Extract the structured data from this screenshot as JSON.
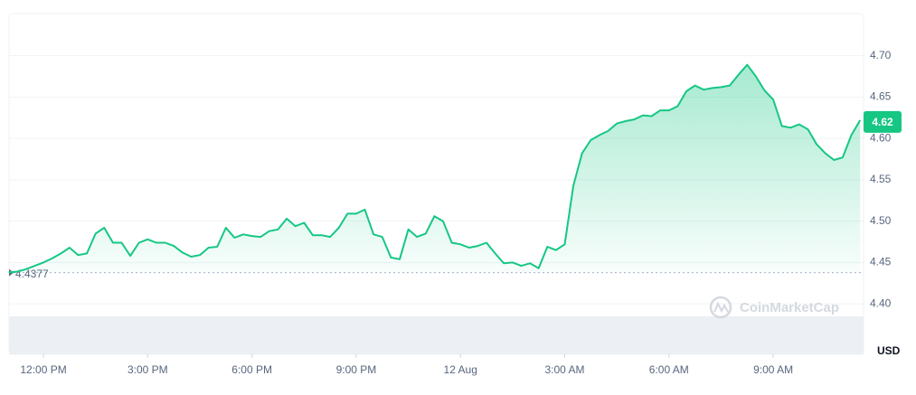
{
  "chart_data": {
    "type": "area",
    "unit": "USD",
    "watermark": "CoinMarketCap",
    "color": "#16c784",
    "x": [
      -1,
      -0.75,
      -0.5,
      -0.25,
      0,
      0.25,
      0.5,
      0.75,
      1,
      1.25,
      1.5,
      1.75,
      2,
      2.25,
      2.5,
      2.75,
      3,
      3.25,
      3.5,
      3.75,
      4,
      4.25,
      4.5,
      4.75,
      5,
      5.25,
      5.5,
      5.75,
      6,
      6.25,
      6.5,
      6.75,
      7,
      7.25,
      7.5,
      7.75,
      8,
      8.25,
      8.5,
      8.75,
      9,
      9.25,
      9.5,
      9.75,
      10,
      10.25,
      10.5,
      10.75,
      11,
      11.25,
      11.5,
      11.75,
      12,
      12.25,
      12.5,
      12.75,
      13,
      13.25,
      13.5,
      13.75,
      14,
      14.25,
      14.5,
      14.75,
      15,
      15.25,
      15.5,
      15.75,
      16,
      16.25,
      16.5,
      16.75,
      17,
      17.25,
      17.5,
      17.75,
      18,
      18.25,
      18.5,
      18.75,
      19,
      19.25,
      19.5,
      19.75,
      20,
      20.25,
      20.5,
      20.75,
      21,
      21.25,
      21.5,
      21.75,
      22,
      22.25,
      22.5,
      22.75,
      23,
      23.25,
      23.5
    ],
    "values": [
      4.438,
      4.439,
      4.442,
      4.446,
      4.45,
      4.455,
      4.461,
      4.468,
      4.459,
      4.461,
      4.485,
      4.492,
      4.474,
      4.474,
      4.458,
      4.474,
      4.478,
      4.474,
      4.474,
      4.47,
      4.462,
      4.457,
      4.459,
      4.468,
      4.469,
      4.492,
      4.48,
      4.484,
      4.482,
      4.481,
      4.488,
      4.49,
      4.503,
      4.494,
      4.498,
      4.483,
      4.483,
      4.481,
      4.492,
      4.509,
      4.509,
      4.514,
      4.484,
      4.481,
      4.456,
      4.454,
      4.49,
      4.481,
      4.485,
      4.506,
      4.5,
      4.474,
      4.472,
      4.468,
      4.47,
      4.474,
      4.461,
      4.449,
      4.45,
      4.446,
      4.449,
      4.443,
      4.469,
      4.465,
      4.472,
      4.543,
      4.582,
      4.598,
      4.604,
      4.609,
      4.618,
      4.621,
      4.623,
      4.628,
      4.627,
      4.634,
      4.634,
      4.639,
      4.657,
      4.664,
      4.659,
      4.661,
      4.662,
      4.664,
      4.677,
      4.689,
      4.675,
      4.658,
      4.647,
      4.615,
      4.613,
      4.617,
      4.611,
      4.593,
      4.582,
      4.574,
      4.577,
      4.604,
      4.622
    ],
    "baseline": 4.4377,
    "current_price": {
      "value": 4.62,
      "label": "4.62"
    },
    "xlim": [
      -0.99,
      23.6
    ],
    "xticks": [
      {
        "value": 0,
        "label": "12:00 PM"
      },
      {
        "value": 3,
        "label": "3:00 PM"
      },
      {
        "value": 6,
        "label": "6:00 PM"
      },
      {
        "value": 9,
        "label": "9:00 PM"
      },
      {
        "value": 12,
        "label": "12 Aug"
      },
      {
        "value": 15,
        "label": "3:00 AM"
      },
      {
        "value": 18,
        "label": "6:00 AM"
      },
      {
        "value": 21,
        "label": "9:00 AM"
      }
    ],
    "ylim": [
      4.339,
      4.751
    ],
    "yticks": [
      {
        "value": 4.4,
        "label": "4.40"
      },
      4.45,
      {
        "value": 4.5,
        "label": "4.50"
      },
      4.55,
      {
        "value": 4.6,
        "label": "4.60"
      },
      4.65,
      {
        "value": 4.7,
        "label": "4.70"
      }
    ],
    "grid": true
  }
}
